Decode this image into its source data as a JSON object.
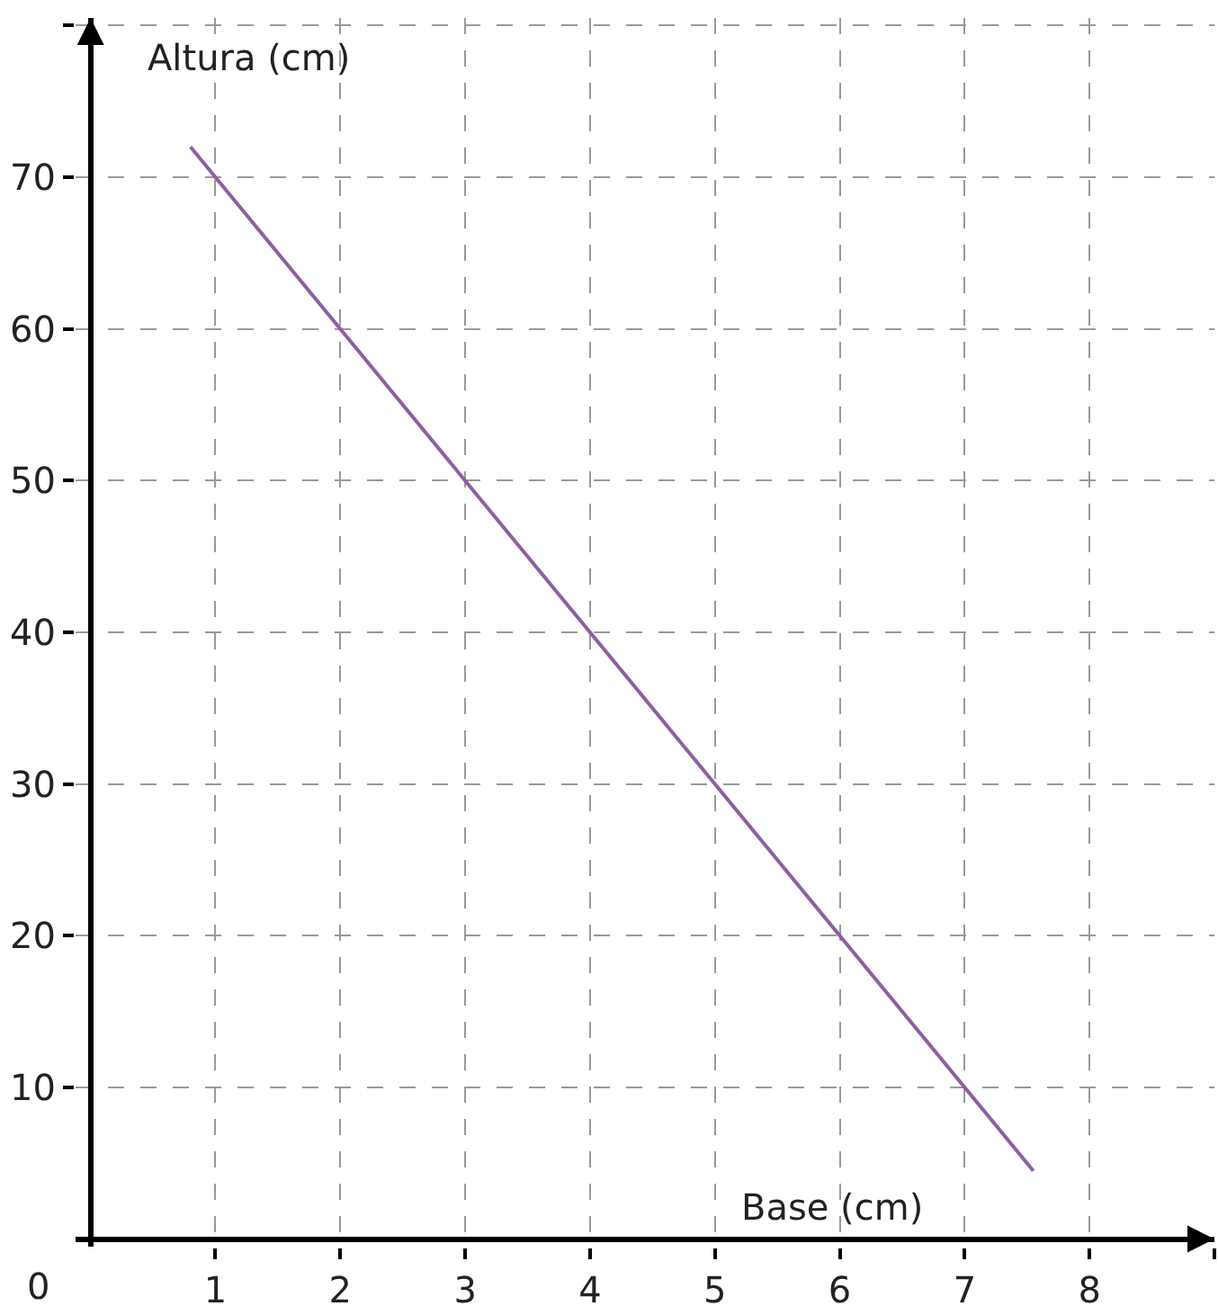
{
  "chart_data": {
    "type": "line",
    "xlabel": "Base (cm)",
    "ylabel": "Altura (cm)",
    "x": [
      0.8,
      7.55
    ],
    "series": [
      {
        "color": "#8e5ea2",
        "values": [
          72,
          4.5
        ]
      }
    ],
    "xlim": [
      -0.12,
      9
    ],
    "ylim": [
      -0.5,
      80.5
    ],
    "xticks": [
      1,
      2,
      3,
      4,
      5,
      6,
      7,
      8,
      {
        "value": 9,
        "label": null
      }
    ],
    "yticks": [
      10,
      20,
      30,
      40,
      50,
      60,
      70,
      {
        "value": 80,
        "label": null
      }
    ],
    "annotations": [
      "0"
    ],
    "grid": true,
    "marker": "none",
    "line_style": "solid"
  }
}
